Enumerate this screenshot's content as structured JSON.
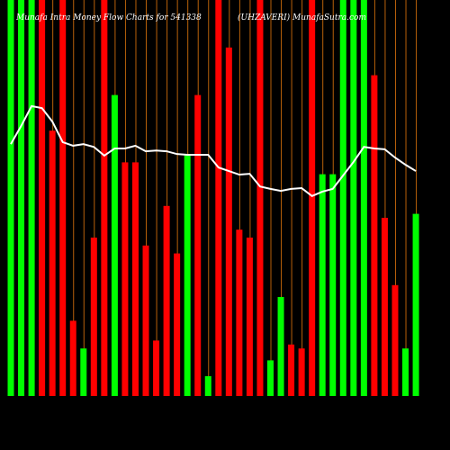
{
  "chart_data": {
    "type": "bar",
    "title": "Munafa Intra Money Flow Charts for 541338",
    "subtitle": "(UHZAVERI) MunafaSutra.com",
    "categories": [
      null,
      null,
      null,
      null,
      null,
      null,
      null,
      null,
      null,
      null,
      null,
      null,
      null,
      null,
      null,
      null,
      null,
      null,
      null,
      null,
      null,
      null,
      null,
      null,
      null,
      null,
      null,
      null,
      null,
      null,
      null,
      null,
      null,
      null,
      null,
      null,
      null,
      null,
      null,
      null
    ],
    "values": [
      100,
      100,
      100,
      100,
      67,
      100,
      19,
      12,
      40,
      100,
      76,
      59,
      59,
      38,
      14,
      48,
      36,
      61,
      76,
      5,
      100,
      88,
      42,
      40,
      100,
      9,
      25,
      13,
      12,
      100,
      56,
      56,
      100,
      100,
      100,
      81,
      45,
      28,
      12,
      46
    ],
    "bar_colors": [
      "#00ff00",
      "#00ff00",
      "#00ff00",
      "#ff0000",
      "#ff0000",
      "#ff0000",
      "#ff0000",
      "#00ff00",
      "#ff0000",
      "#ff0000",
      "#00ff00",
      "#ff0000",
      "#ff0000",
      "#ff0000",
      "#ff0000",
      "#ff0000",
      "#ff0000",
      "#00ff00",
      "#ff0000",
      "#00ff00",
      "#ff0000",
      "#ff0000",
      "#ff0000",
      "#ff0000",
      "#ff0000",
      "#00ff00",
      "#00ff00",
      "#ff0000",
      "#ff0000",
      "#ff0000",
      "#00ff00",
      "#00ff00",
      "#00ff00",
      "#00ff00",
      "#00ff00",
      "#ff0000",
      "#ff0000",
      "#ff0000",
      "#00ff00",
      "#00ff00"
    ],
    "line_values": [
      63.6,
      68.2,
      73.2,
      72.7,
      69.3,
      64.1,
      63.2,
      63.6,
      62.9,
      60.7,
      62.5,
      62.5,
      63.2,
      61.8,
      62.0,
      61.8,
      61.1,
      60.9,
      60.9,
      60.9,
      57.7,
      56.8,
      55.9,
      56.1,
      52.9,
      52.3,
      51.8,
      52.3,
      52.5,
      50.5,
      51.6,
      52.3,
      55.7,
      59.1,
      62.9,
      62.5,
      62.3,
      60.2,
      58.4,
      56.8
    ],
    "line_color": "#ffffff",
    "ylim": [
      0,
      100
    ]
  }
}
